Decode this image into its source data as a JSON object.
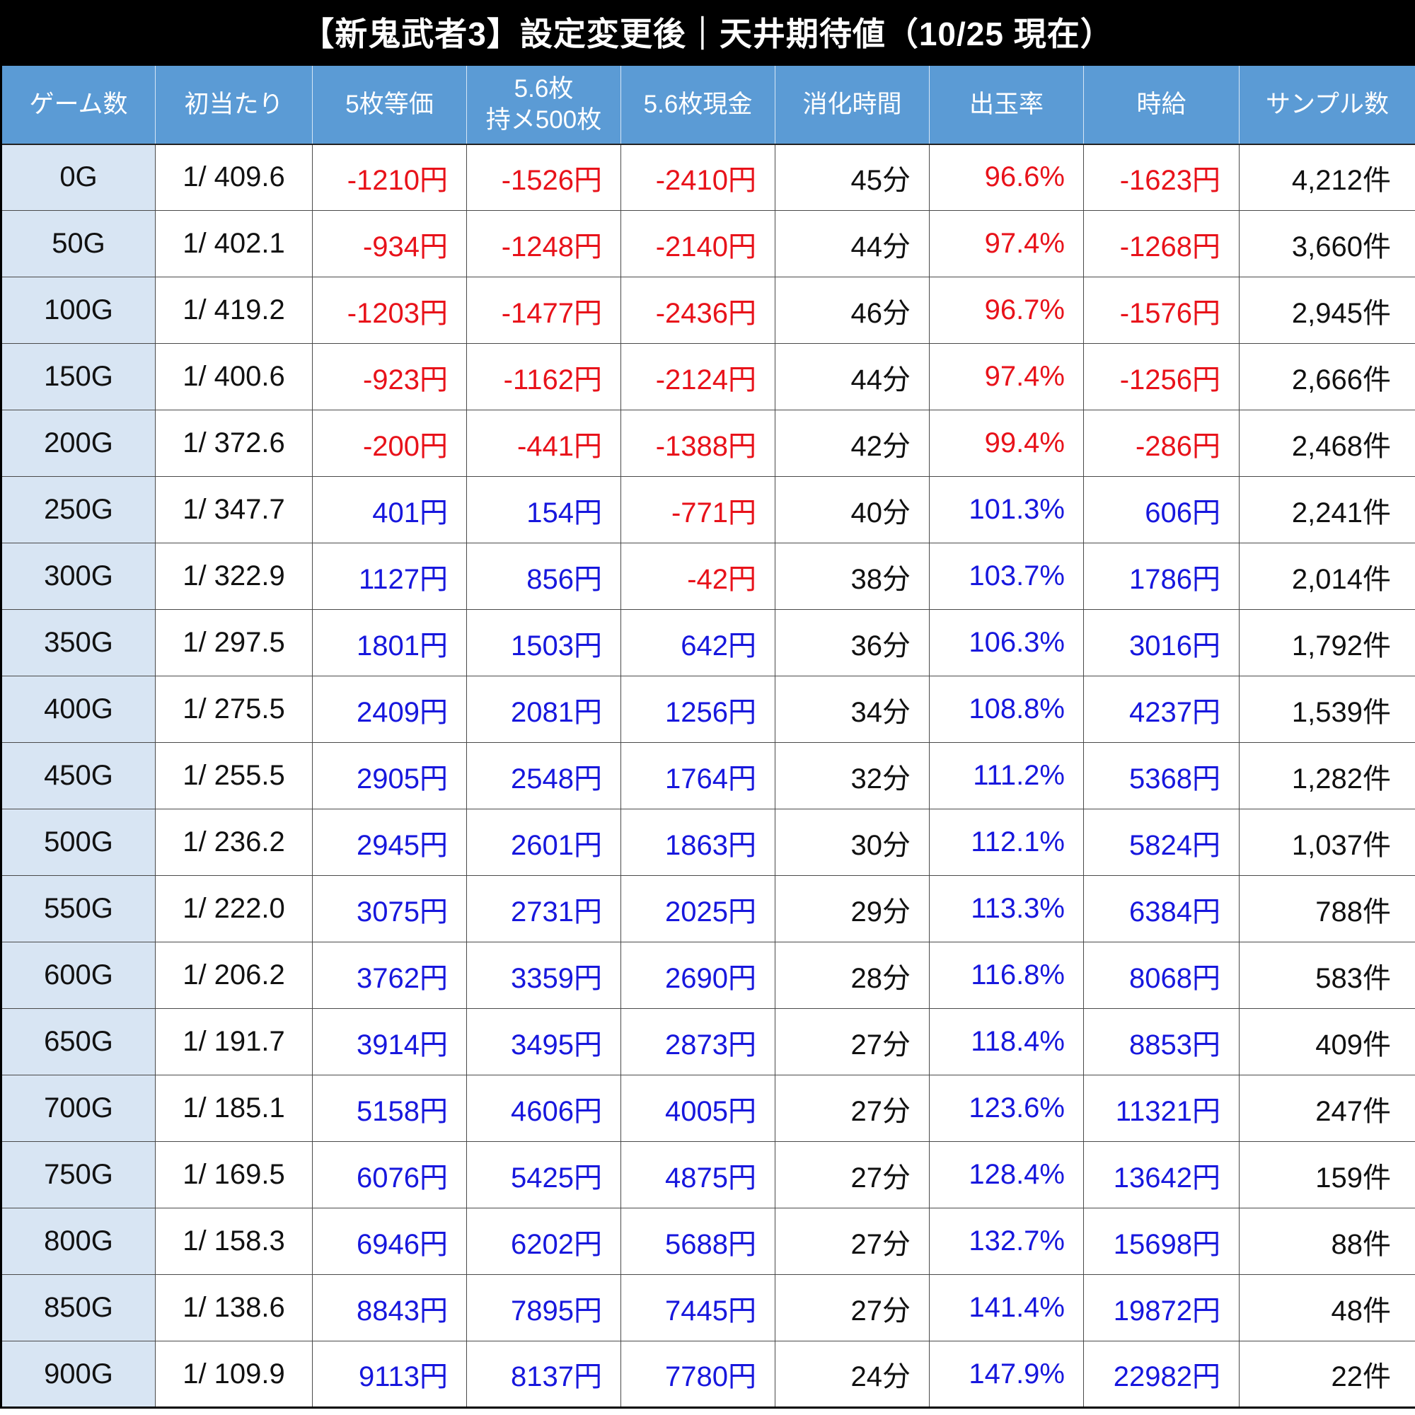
{
  "title": "【新鬼武者3】設定変更後｜天井期待値（10/25 現在）",
  "colors": {
    "title_bg": "#000000",
    "title_fg": "#ffffff",
    "header_bg": "#5b9bd5",
    "label_bg": "#d8e5f3",
    "negative_text": "#e8121a",
    "positive_text": "#1717dd"
  },
  "chart_data": {
    "type": "table",
    "title": "【新鬼武者3】設定変更後｜天井期待値（10/25 現在）",
    "columns": [
      {
        "key": "games",
        "label": "ゲーム数"
      },
      {
        "key": "first_hit",
        "label": "初当たり"
      },
      {
        "key": "five_equal",
        "label": "5枚等価"
      },
      {
        "key": "five6_hold",
        "label": "5.6枚",
        "label2": "持メ500枚"
      },
      {
        "key": "five6_cash",
        "label": "5.6枚現金"
      },
      {
        "key": "time",
        "label": "消化時間"
      },
      {
        "key": "payout_rate",
        "label": "出玉率"
      },
      {
        "key": "hourly_wage",
        "label": "時給"
      },
      {
        "key": "samples",
        "label": "サンプル数"
      }
    ],
    "column_types": [
      "label",
      "plain",
      "money",
      "money",
      "money",
      "plain",
      "percent",
      "money",
      "plain"
    ],
    "rows": [
      [
        "0G",
        "1/ 409.6",
        "-1210円",
        "-1526円",
        "-2410円",
        "45分",
        "96.6%",
        "-1623円",
        "4,212件"
      ],
      [
        "50G",
        "1/ 402.1",
        "-934円",
        "-1248円",
        "-2140円",
        "44分",
        "97.4%",
        "-1268円",
        "3,660件"
      ],
      [
        "100G",
        "1/ 419.2",
        "-1203円",
        "-1477円",
        "-2436円",
        "46分",
        "96.7%",
        "-1576円",
        "2,945件"
      ],
      [
        "150G",
        "1/ 400.6",
        "-923円",
        "-1162円",
        "-2124円",
        "44分",
        "97.4%",
        "-1256円",
        "2,666件"
      ],
      [
        "200G",
        "1/ 372.6",
        "-200円",
        "-441円",
        "-1388円",
        "42分",
        "99.4%",
        "-286円",
        "2,468件"
      ],
      [
        "250G",
        "1/ 347.7",
        "401円",
        "154円",
        "-771円",
        "40分",
        "101.3%",
        "606円",
        "2,241件"
      ],
      [
        "300G",
        "1/ 322.9",
        "1127円",
        "856円",
        "-42円",
        "38分",
        "103.7%",
        "1786円",
        "2,014件"
      ],
      [
        "350G",
        "1/ 297.5",
        "1801円",
        "1503円",
        "642円",
        "36分",
        "106.3%",
        "3016円",
        "1,792件"
      ],
      [
        "400G",
        "1/ 275.5",
        "2409円",
        "2081円",
        "1256円",
        "34分",
        "108.8%",
        "4237円",
        "1,539件"
      ],
      [
        "450G",
        "1/ 255.5",
        "2905円",
        "2548円",
        "1764円",
        "32分",
        "111.2%",
        "5368円",
        "1,282件"
      ],
      [
        "500G",
        "1/ 236.2",
        "2945円",
        "2601円",
        "1863円",
        "30分",
        "112.1%",
        "5824円",
        "1,037件"
      ],
      [
        "550G",
        "1/ 222.0",
        "3075円",
        "2731円",
        "2025円",
        "29分",
        "113.3%",
        "6384円",
        "788件"
      ],
      [
        "600G",
        "1/ 206.2",
        "3762円",
        "3359円",
        "2690円",
        "28分",
        "116.8%",
        "8068円",
        "583件"
      ],
      [
        "650G",
        "1/ 191.7",
        "3914円",
        "3495円",
        "2873円",
        "27分",
        "118.4%",
        "8853円",
        "409件"
      ],
      [
        "700G",
        "1/ 185.1",
        "5158円",
        "4606円",
        "4005円",
        "27分",
        "123.6%",
        "11321円",
        "247件"
      ],
      [
        "750G",
        "1/ 169.5",
        "6076円",
        "5425円",
        "4875円",
        "27分",
        "128.4%",
        "13642円",
        "159件"
      ],
      [
        "800G",
        "1/ 158.3",
        "6946円",
        "6202円",
        "5688円",
        "27分",
        "132.7%",
        "15698円",
        "88件"
      ],
      [
        "850G",
        "1/ 138.6",
        "8843円",
        "7895円",
        "7445円",
        "27分",
        "141.4%",
        "19872円",
        "48件"
      ],
      [
        "900G",
        "1/ 109.9",
        "9113円",
        "8137円",
        "7780円",
        "24分",
        "147.9%",
        "22982円",
        "22件"
      ]
    ]
  }
}
